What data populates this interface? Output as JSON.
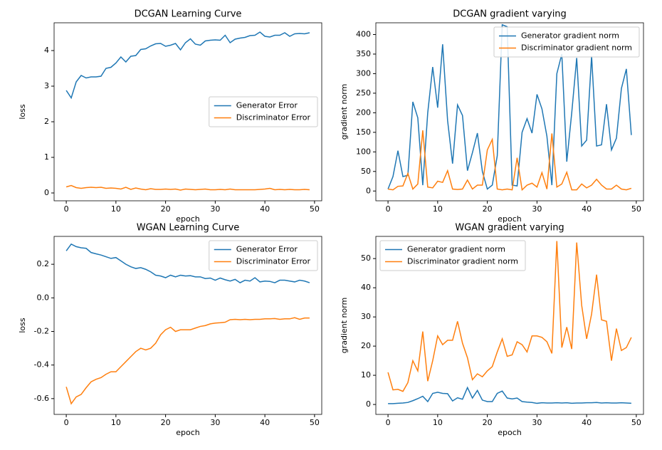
{
  "chart_data": [
    {
      "type": "line",
      "title": "DCGAN Learning Curve",
      "x_label": "epoch",
      "y_label": "loss",
      "x": [
        0,
        1,
        2,
        3,
        4,
        5,
        6,
        7,
        8,
        9,
        10,
        11,
        12,
        13,
        14,
        15,
        16,
        17,
        18,
        19,
        20,
        21,
        22,
        23,
        24,
        25,
        26,
        27,
        28,
        29,
        30,
        31,
        32,
        33,
        34,
        35,
        36,
        37,
        38,
        39,
        40,
        41,
        42,
        43,
        44,
        45,
        46,
        47,
        48,
        49
      ],
      "xlim": [
        -2.45,
        51.45
      ],
      "xticks": [
        0,
        10,
        20,
        30,
        40,
        50
      ],
      "ylim": [
        -0.22,
        4.78
      ],
      "yticks": [
        0,
        1,
        2,
        3,
        4
      ],
      "legend": "center right",
      "series": [
        {
          "name": "Generator Error",
          "color": "#1f77b4",
          "values": [
            2.88,
            2.67,
            3.12,
            3.3,
            3.23,
            3.26,
            3.26,
            3.28,
            3.5,
            3.53,
            3.65,
            3.82,
            3.68,
            3.84,
            3.86,
            4.03,
            4.05,
            4.13,
            4.19,
            4.2,
            4.12,
            4.15,
            4.2,
            4.02,
            4.22,
            4.33,
            4.18,
            4.15,
            4.27,
            4.29,
            4.3,
            4.29,
            4.43,
            4.22,
            4.32,
            4.35,
            4.37,
            4.42,
            4.43,
            4.52,
            4.4,
            4.38,
            4.43,
            4.43,
            4.5,
            4.4,
            4.47,
            4.48,
            4.47,
            4.5
          ]
        },
        {
          "name": "Discriminator Error",
          "color": "#ff7f0e",
          "values": [
            0.17,
            0.21,
            0.15,
            0.13,
            0.15,
            0.16,
            0.15,
            0.16,
            0.13,
            0.14,
            0.13,
            0.11,
            0.16,
            0.1,
            0.14,
            0.11,
            0.09,
            0.12,
            0.1,
            0.1,
            0.11,
            0.1,
            0.11,
            0.08,
            0.11,
            0.1,
            0.09,
            0.1,
            0.11,
            0.09,
            0.09,
            0.1,
            0.09,
            0.11,
            0.09,
            0.09,
            0.09,
            0.09,
            0.09,
            0.1,
            0.11,
            0.13,
            0.09,
            0.1,
            0.09,
            0.1,
            0.09,
            0.09,
            0.1,
            0.09
          ]
        }
      ]
    },
    {
      "type": "line",
      "title": "DCGAN gradient varying",
      "x_label": "epoch",
      "y_label": "gradient norm",
      "x": [
        0,
        1,
        2,
        3,
        4,
        5,
        6,
        7,
        8,
        9,
        10,
        11,
        12,
        13,
        14,
        15,
        16,
        17,
        18,
        19,
        20,
        21,
        22,
        23,
        24,
        25,
        26,
        27,
        28,
        29,
        30,
        31,
        32,
        33,
        34,
        35,
        36,
        37,
        38,
        39,
        40,
        41,
        42,
        43,
        44,
        45,
        46,
        47,
        48,
        49
      ],
      "xlim": [
        -2.45,
        51.45
      ],
      "xticks": [
        0,
        10,
        20,
        30,
        40,
        50
      ],
      "ylim": [
        -25,
        430
      ],
      "yticks": [
        0,
        50,
        100,
        150,
        200,
        250,
        300,
        350,
        400
      ],
      "legend": "upper right",
      "series": [
        {
          "name": "Generator gradient norm",
          "color": "#1f77b4",
          "values": [
            5,
            37,
            103,
            37,
            40,
            228,
            187,
            15,
            200,
            317,
            213,
            375,
            180,
            70,
            220,
            193,
            52,
            98,
            148,
            50,
            5,
            15,
            90,
            425,
            420,
            15,
            13,
            150,
            185,
            148,
            247,
            210,
            140,
            15,
            300,
            350,
            75,
            200,
            340,
            115,
            130,
            345,
            115,
            118,
            222,
            105,
            135,
            262,
            312,
            143
          ]
        },
        {
          "name": "Discriminator gradient norm",
          "color": "#ff7f0e",
          "values": [
            5,
            3,
            12,
            13,
            45,
            5,
            18,
            155,
            10,
            8,
            25,
            22,
            52,
            5,
            4,
            5,
            28,
            5,
            15,
            15,
            105,
            132,
            5,
            3,
            5,
            3,
            85,
            3,
            15,
            20,
            10,
            47,
            5,
            147,
            10,
            18,
            48,
            3,
            3,
            18,
            8,
            15,
            30,
            15,
            5,
            5,
            15,
            5,
            3,
            7
          ]
        }
      ]
    },
    {
      "type": "line",
      "title": "WGAN Learning Curve",
      "x_label": "epoch",
      "y_label": "loss",
      "x": [
        0,
        1,
        2,
        3,
        4,
        5,
        6,
        7,
        8,
        9,
        10,
        11,
        12,
        13,
        14,
        15,
        16,
        17,
        18,
        19,
        20,
        21,
        22,
        23,
        24,
        25,
        26,
        27,
        28,
        29,
        30,
        31,
        32,
        33,
        34,
        35,
        36,
        37,
        38,
        39,
        40,
        41,
        42,
        43,
        44,
        45,
        46,
        47,
        48,
        49
      ],
      "xlim": [
        -2.45,
        51.45
      ],
      "xticks": [
        0,
        10,
        20,
        30,
        40,
        50
      ],
      "ylim": [
        -0.694,
        0.366
      ],
      "yticks": [
        -0.6,
        -0.4,
        -0.2,
        {
          "value": 0,
          "label": "0.0"
        },
        0.2
      ],
      "legend": "upper right",
      "series": [
        {
          "name": "Generator Error",
          "color": "#1f77b4",
          "values": [
            0.28,
            0.32,
            0.305,
            0.298,
            0.295,
            0.27,
            0.262,
            0.255,
            0.245,
            0.235,
            0.24,
            0.22,
            0.2,
            0.185,
            0.175,
            0.18,
            0.17,
            0.155,
            0.135,
            0.13,
            0.12,
            0.135,
            0.125,
            0.135,
            0.13,
            0.132,
            0.125,
            0.125,
            0.115,
            0.118,
            0.105,
            0.118,
            0.108,
            0.1,
            0.11,
            0.09,
            0.105,
            0.1,
            0.12,
            0.095,
            0.1,
            0.098,
            0.09,
            0.105,
            0.105,
            0.1,
            0.095,
            0.105,
            0.1,
            0.09
          ]
        },
        {
          "name": "Discriminator Error",
          "color": "#ff7f0e",
          "values": [
            -0.53,
            -0.63,
            -0.59,
            -0.575,
            -0.535,
            -0.5,
            -0.485,
            -0.475,
            -0.455,
            -0.44,
            -0.44,
            -0.41,
            -0.38,
            -0.35,
            -0.32,
            -0.3,
            -0.31,
            -0.3,
            -0.27,
            -0.22,
            -0.19,
            -0.175,
            -0.2,
            -0.19,
            -0.19,
            -0.19,
            -0.18,
            -0.17,
            -0.165,
            -0.155,
            -0.15,
            -0.148,
            -0.145,
            -0.13,
            -0.128,
            -0.13,
            -0.128,
            -0.13,
            -0.128,
            -0.128,
            -0.125,
            -0.125,
            -0.123,
            -0.128,
            -0.125,
            -0.125,
            -0.118,
            -0.128,
            -0.12,
            -0.12
          ]
        }
      ]
    },
    {
      "type": "line",
      "title": "WGAN gradient varying",
      "x_label": "epoch",
      "y_label": "gradient norm",
      "x": [
        0,
        1,
        2,
        3,
        4,
        5,
        6,
        7,
        8,
        9,
        10,
        11,
        12,
        13,
        14,
        15,
        16,
        17,
        18,
        19,
        20,
        21,
        22,
        23,
        24,
        25,
        26,
        27,
        28,
        29,
        30,
        31,
        32,
        33,
        34,
        35,
        36,
        37,
        38,
        39,
        40,
        41,
        42,
        43,
        44,
        45,
        46,
        47,
        48,
        49
      ],
      "xlim": [
        -2.45,
        51.45
      ],
      "xticks": [
        0,
        10,
        20,
        30,
        40,
        50
      ],
      "ylim": [
        -3.4,
        57.6
      ],
      "yticks": [
        0,
        10,
        20,
        30,
        40,
        50
      ],
      "legend": "upper left",
      "series": [
        {
          "name": "Generator gradient norm",
          "color": "#1f77b4",
          "values": [
            0.3,
            0.3,
            0.4,
            0.5,
            0.7,
            1.3,
            2.0,
            2.8,
            1.0,
            3.8,
            4.2,
            3.8,
            3.7,
            1.2,
            2.3,
            1.8,
            5.8,
            2.2,
            4.8,
            1.5,
            1.0,
            1.0,
            3.8,
            4.6,
            2.2,
            1.9,
            2.2,
            1.0,
            0.8,
            0.7,
            0.4,
            0.6,
            0.5,
            0.5,
            0.6,
            0.5,
            0.6,
            0.4,
            0.5,
            0.5,
            0.6,
            0.6,
            0.7,
            0.5,
            0.6,
            0.5,
            0.5,
            0.6,
            0.5,
            0.4
          ]
        },
        {
          "name": "Discriminator gradient norm",
          "color": "#ff7f0e",
          "values": [
            11,
            5,
            5.2,
            4.5,
            7.5,
            15,
            11.5,
            25,
            8,
            15,
            23.5,
            20.5,
            22,
            22,
            28.5,
            21,
            16,
            8.5,
            10.5,
            9.5,
            11.5,
            13,
            18,
            22.5,
            16.5,
            17,
            21.5,
            20.5,
            18,
            23.5,
            23.5,
            23,
            21.5,
            17.5,
            56,
            19.5,
            26.5,
            19,
            55.5,
            34,
            22.5,
            31,
            44.5,
            29,
            28.5,
            15,
            26,
            18.5,
            19.5,
            23
          ]
        }
      ]
    }
  ]
}
